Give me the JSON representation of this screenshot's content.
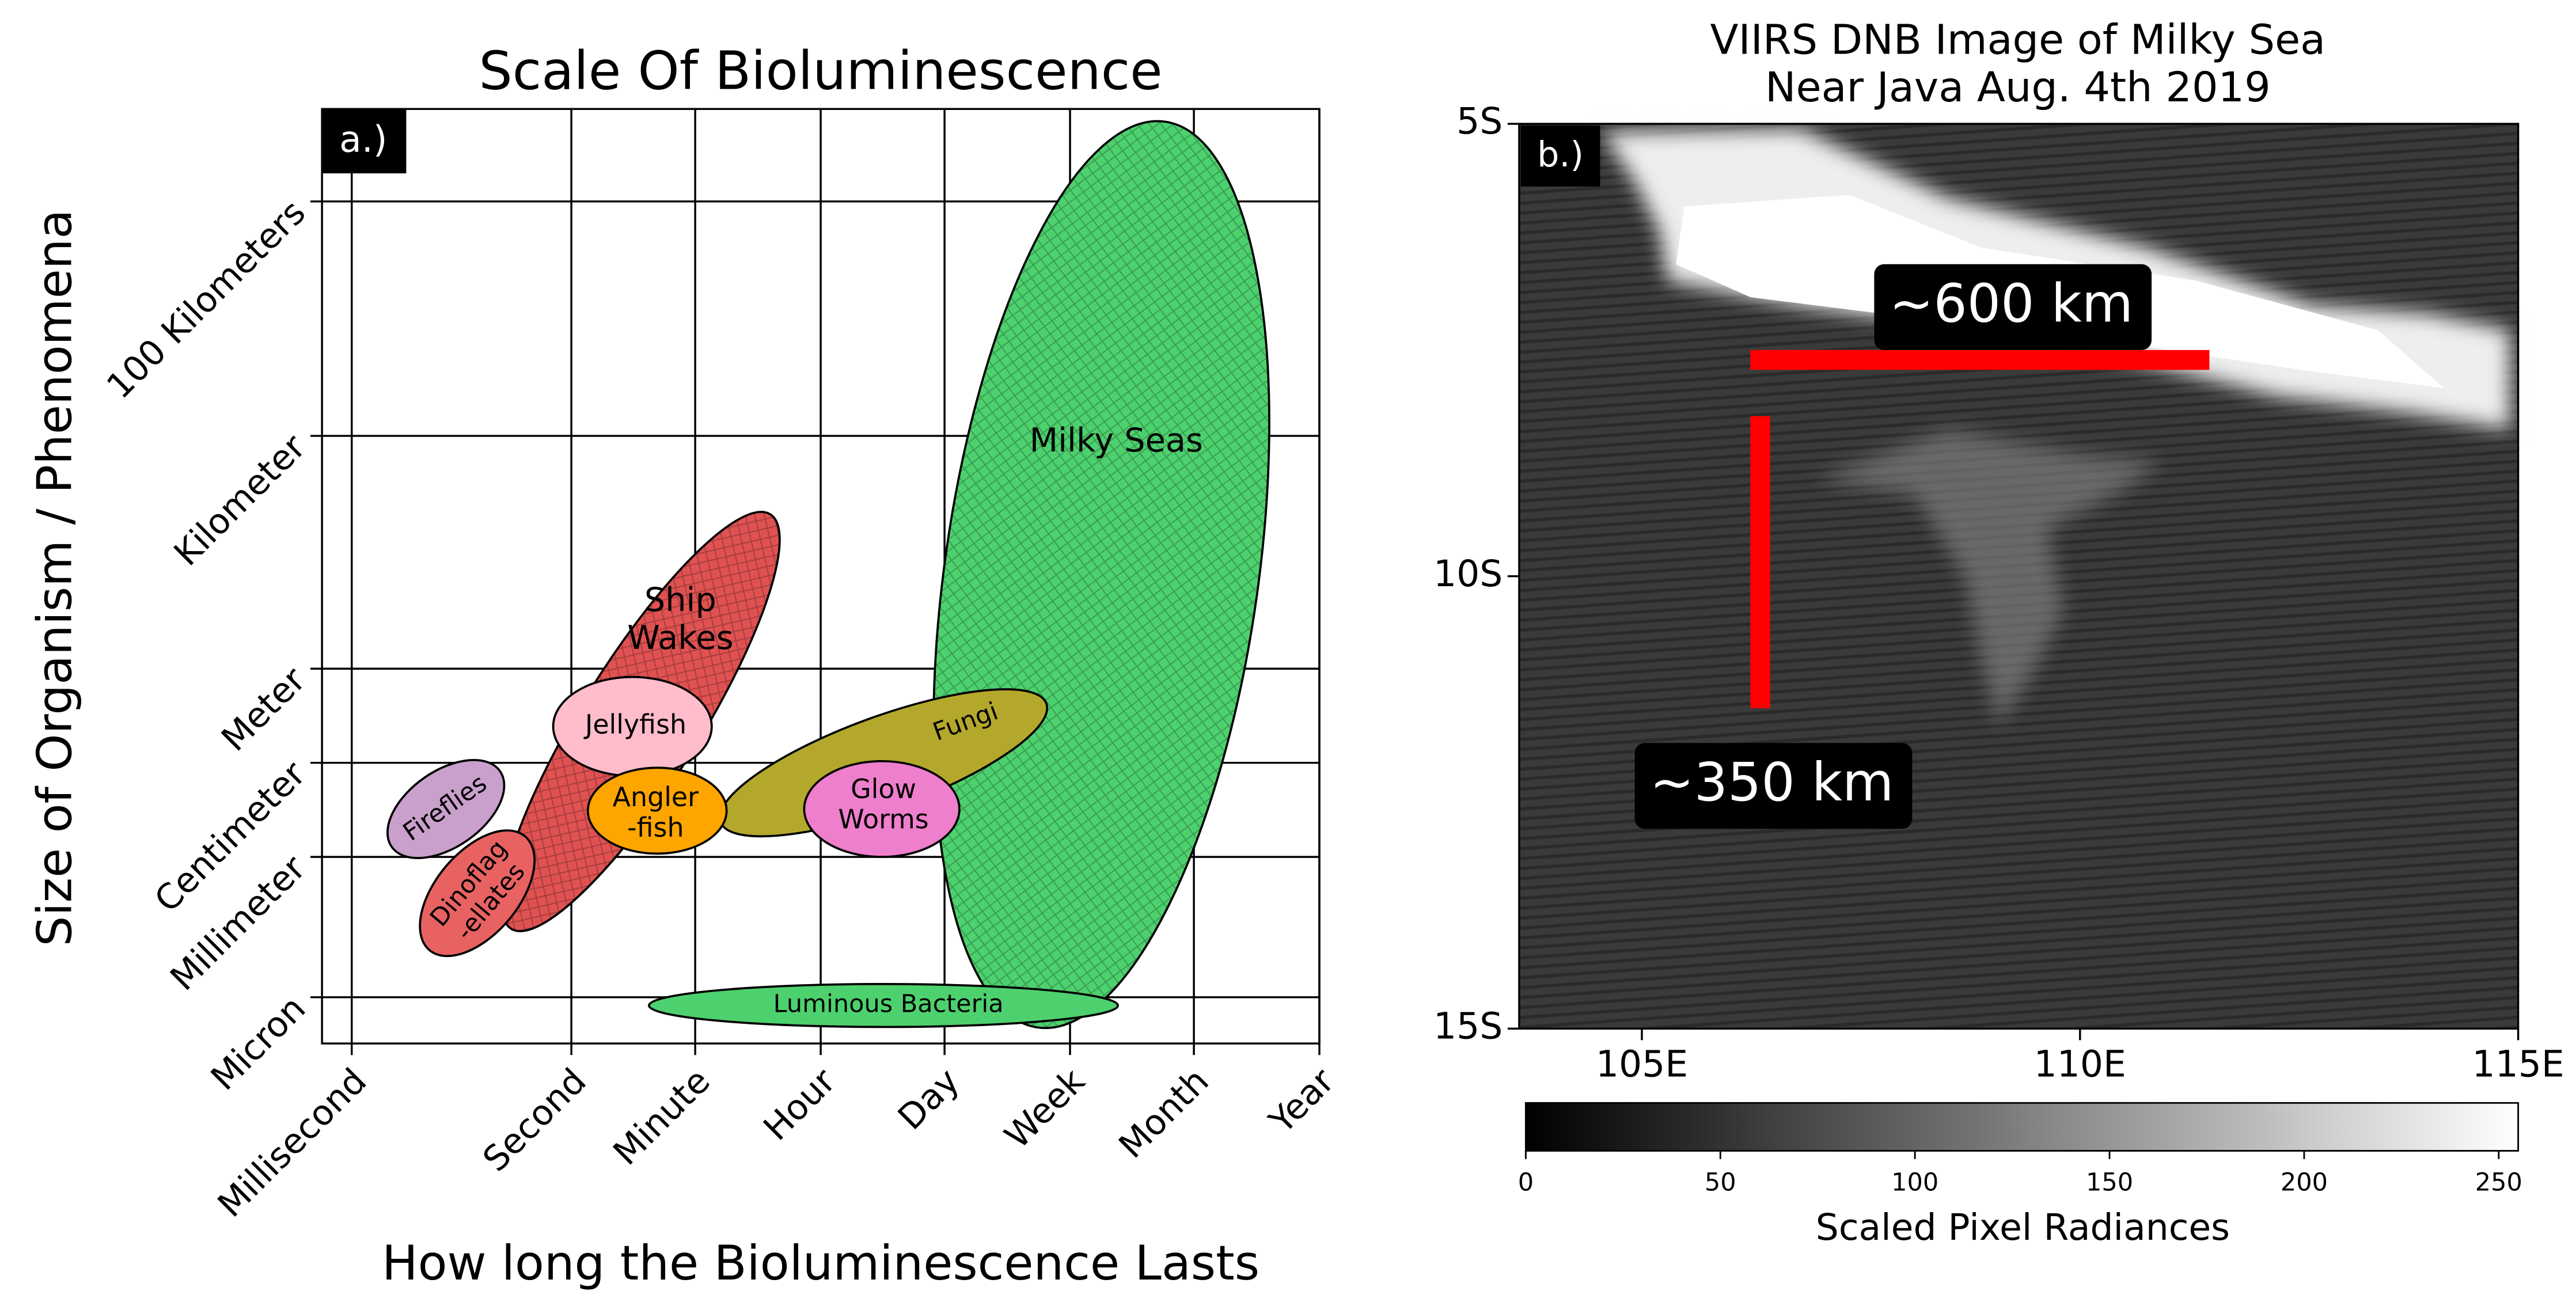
{
  "chart_data": [
    {
      "type": "ellipse",
      "title": "Scale Of Bioluminescence",
      "panel_label": "a.)",
      "x_label": "How long the Bioluminescence Lasts",
      "y_label": "Size of Organism / Phenomena",
      "x_categories": [
        "Millisecond",
        "Second",
        "Minute",
        "Hour",
        "Day",
        "Week",
        "Month",
        "Year"
      ],
      "y_categories": [
        "Micron",
        "Millimeter",
        "Centimeter",
        "Meter",
        "Kilometer",
        "100 Kilometers"
      ],
      "grid": true,
      "ellipses": [
        {
          "name": "Milky Seas",
          "color": "#4dd16e",
          "hatch": true
        },
        {
          "name": "Ship\nWakes",
          "color": "#e05252",
          "hatch": true
        },
        {
          "name": "Jellyfish",
          "color": "#ffbccb"
        },
        {
          "name": "Angler\n-fish",
          "color": "#ffa500"
        },
        {
          "name": "Fungi",
          "color": "#b4a82c"
        },
        {
          "name": "Glow\nWorms",
          "color": "#ee7fcc"
        },
        {
          "name": "Fireflies",
          "color": "#c9a0cc"
        },
        {
          "name": "Dinoflag\n-ellates",
          "color": "#e86262"
        },
        {
          "name": "Luminous Bacteria",
          "color": "#4dd16e"
        }
      ]
    },
    {
      "type": "image",
      "title": "VIIRS DNB Image of Milky Sea\nNear Java Aug. 4th 2019",
      "panel_label": "b.)",
      "xlim": [
        103.6,
        115
      ],
      "ylim": [
        -15,
        -5
      ],
      "xticks": [
        {
          "value": 105,
          "label": "105E"
        },
        {
          "value": 110,
          "label": "110E"
        },
        {
          "value": 115,
          "label": "115E"
        }
      ],
      "yticks": [
        {
          "value": -5,
          "label": "5S"
        },
        {
          "value": -10,
          "label": "10S"
        },
        {
          "value": -15,
          "label": "15S"
        }
      ],
      "annotations": [
        "~600 km",
        "~350 km"
      ],
      "colorbar": {
        "label": "Scaled Pixel Radiances",
        "lim": [
          0,
          255
        ],
        "ticks": [
          0,
          50,
          100,
          150,
          200,
          250
        ]
      }
    }
  ]
}
